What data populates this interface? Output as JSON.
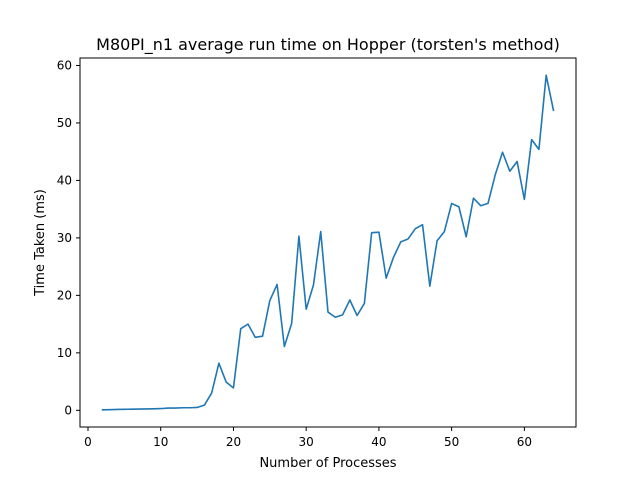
{
  "chart_data": {
    "type": "line",
    "title": "M80PI_n1 average run time on Hopper (torsten's method)",
    "xlabel": "Number of Processes",
    "ylabel": "Time Taken (ms)",
    "xlim": [
      -1.1,
      67.1
    ],
    "ylim": [
      -2.9,
      61.3
    ],
    "xticks": [
      0,
      10,
      20,
      30,
      40,
      50,
      60
    ],
    "yticks": [
      0,
      10,
      20,
      30,
      40,
      50,
      60
    ],
    "grid": false,
    "legend": "none",
    "line_color": "#1f77b4",
    "x": [
      2,
      3,
      4,
      5,
      6,
      7,
      8,
      9,
      10,
      11,
      12,
      13,
      14,
      15,
      16,
      17,
      18,
      19,
      20,
      21,
      22,
      23,
      24,
      25,
      26,
      27,
      28,
      29,
      30,
      31,
      32,
      33,
      34,
      35,
      36,
      37,
      38,
      39,
      40,
      41,
      42,
      43,
      44,
      45,
      46,
      47,
      48,
      49,
      50,
      51,
      52,
      53,
      54,
      55,
      56,
      57,
      58,
      59,
      60,
      61,
      62,
      63,
      64
    ],
    "y": [
      0.1,
      0.12,
      0.15,
      0.18,
      0.2,
      0.22,
      0.25,
      0.27,
      0.3,
      0.4,
      0.4,
      0.45,
      0.45,
      0.5,
      0.9,
      3.0,
      8.2,
      4.9,
      3.9,
      14.2,
      15.0,
      12.7,
      12.9,
      19.1,
      21.9,
      11.1,
      15.1,
      30.3,
      17.6,
      21.8,
      31.1,
      17.1,
      16.2,
      16.6,
      19.2,
      16.5,
      18.6,
      30.9,
      31.0,
      23.0,
      26.6,
      29.3,
      29.8,
      31.6,
      32.3,
      21.6,
      29.5,
      31.1,
      36.0,
      35.4,
      30.2,
      36.9,
      35.6,
      36.0,
      41.0,
      44.9,
      41.6,
      43.3,
      36.7,
      47.1,
      45.4,
      58.3,
      52.2
    ]
  }
}
